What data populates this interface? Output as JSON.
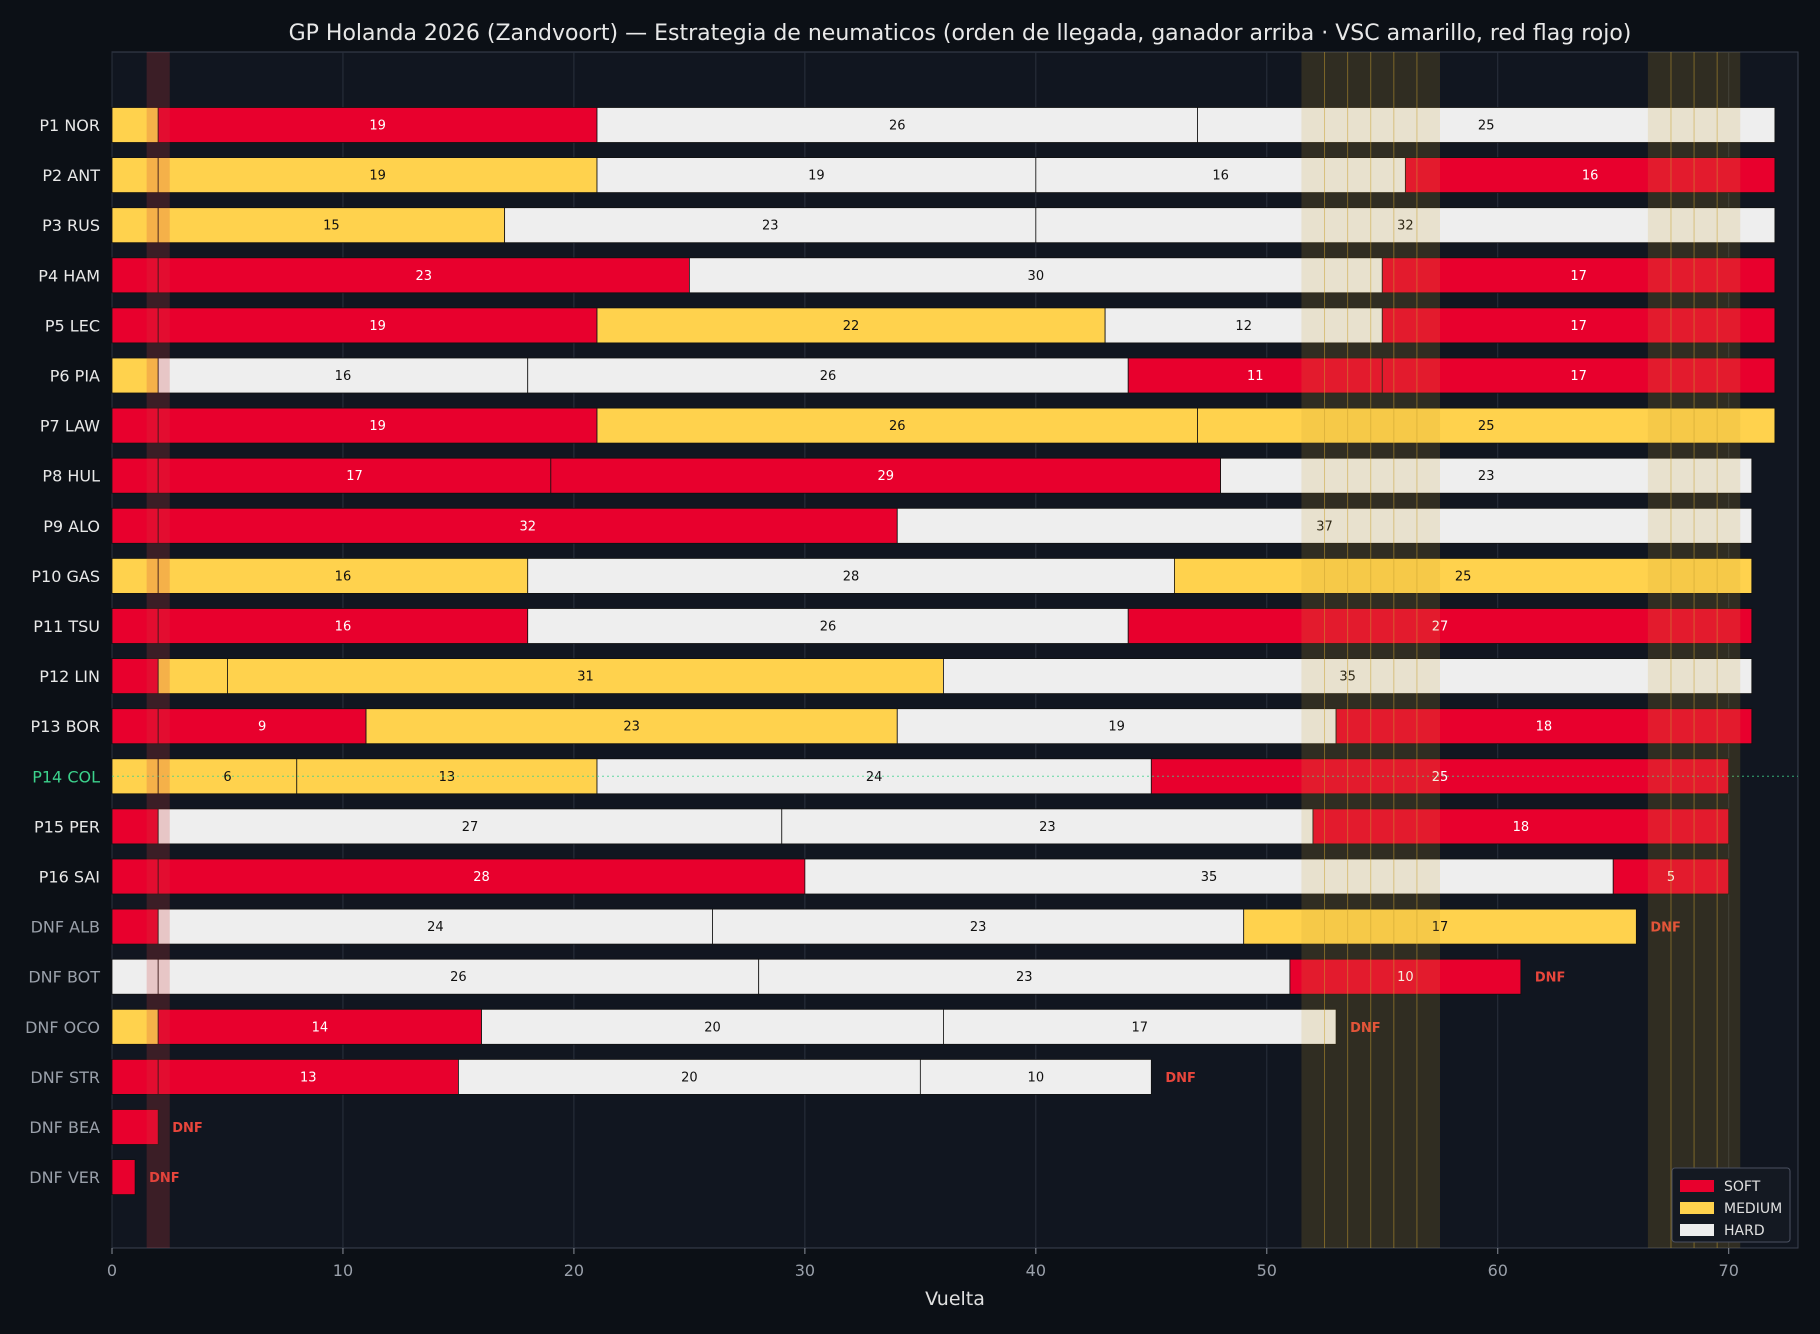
{
  "colors": {
    "background": "#0c1016",
    "plot_background": "#111620",
    "grid": "#2a313d",
    "soft": "#e8002d",
    "medium": "#ffd24d",
    "hard": "#eeeeee",
    "vsc": "#c8a030",
    "red_flag": "#d23c3c",
    "dnf_text": "#e8463c",
    "highlight": "#3cd28c",
    "finisher_label": "#e8e8e8",
    "dnf_label": "#9aa0aa"
  },
  "chart_data": {
    "type": "bar",
    "orientation": "horizontal-stacked",
    "title": "GP Holanda 2026 (Zandvoort) — Estrategia de neumaticos (orden de llegada, ganador arriba · VSC amarillo, red flag rojo)",
    "xlabel": "Vuelta",
    "ylabel": "",
    "xlim": [
      0,
      73
    ],
    "xticks": [
      0,
      10,
      20,
      30,
      40,
      50,
      60,
      70
    ],
    "grid": true,
    "legend": {
      "placement": "bottom-right",
      "entries": [
        {
          "label": "SOFT",
          "compound": "SOFT"
        },
        {
          "label": "MEDIUM",
          "compound": "MEDIUM"
        },
        {
          "label": "HARD",
          "compound": "HARD"
        }
      ]
    },
    "vsc_periods": [
      [
        51.5,
        57.5
      ],
      [
        66.5,
        70.5
      ]
    ],
    "vsc_lap_marks": [
      52.5,
      53.5,
      54.5,
      55.5,
      56.5,
      67.5,
      68.5,
      69.5
    ],
    "red_flag_periods": [
      [
        1.5,
        2.5
      ]
    ],
    "highlight_driver": "P14 COL",
    "drivers": [
      {
        "label": "P1 NOR",
        "dnf": false,
        "stints": [
          {
            "c": "MEDIUM",
            "laps": 2,
            "text": ""
          },
          {
            "c": "SOFT",
            "laps": 19,
            "text": "19"
          },
          {
            "c": "HARD",
            "laps": 26,
            "text": "26"
          },
          {
            "c": "HARD",
            "laps": 25,
            "text": "25"
          }
        ]
      },
      {
        "label": "P2 ANT",
        "dnf": false,
        "stints": [
          {
            "c": "MEDIUM",
            "laps": 2,
            "text": ""
          },
          {
            "c": "MEDIUM",
            "laps": 19,
            "text": "19"
          },
          {
            "c": "HARD",
            "laps": 19,
            "text": "19"
          },
          {
            "c": "HARD",
            "laps": 16,
            "text": "16"
          },
          {
            "c": "SOFT",
            "laps": 16,
            "text": "16"
          }
        ]
      },
      {
        "label": "P3 RUS",
        "dnf": false,
        "stints": [
          {
            "c": "MEDIUM",
            "laps": 2,
            "text": ""
          },
          {
            "c": "MEDIUM",
            "laps": 15,
            "text": "15"
          },
          {
            "c": "HARD",
            "laps": 23,
            "text": "23"
          },
          {
            "c": "HARD",
            "laps": 32,
            "text": "32"
          }
        ]
      },
      {
        "label": "P4 HAM",
        "dnf": false,
        "stints": [
          {
            "c": "SOFT",
            "laps": 2,
            "text": ""
          },
          {
            "c": "SOFT",
            "laps": 23,
            "text": "23"
          },
          {
            "c": "HARD",
            "laps": 30,
            "text": "30"
          },
          {
            "c": "SOFT",
            "laps": 17,
            "text": "17"
          }
        ]
      },
      {
        "label": "P5 LEC",
        "dnf": false,
        "stints": [
          {
            "c": "SOFT",
            "laps": 2,
            "text": ""
          },
          {
            "c": "SOFT",
            "laps": 19,
            "text": "19"
          },
          {
            "c": "MEDIUM",
            "laps": 22,
            "text": "22"
          },
          {
            "c": "HARD",
            "laps": 12,
            "text": "12"
          },
          {
            "c": "SOFT",
            "laps": 17,
            "text": "17"
          }
        ]
      },
      {
        "label": "P6 PIA",
        "dnf": false,
        "stints": [
          {
            "c": "MEDIUM",
            "laps": 2,
            "text": ""
          },
          {
            "c": "HARD",
            "laps": 16,
            "text": "16"
          },
          {
            "c": "HARD",
            "laps": 26,
            "text": "26"
          },
          {
            "c": "SOFT",
            "laps": 11,
            "text": "11"
          },
          {
            "c": "SOFT",
            "laps": 17,
            "text": "17"
          }
        ]
      },
      {
        "label": "P7 LAW",
        "dnf": false,
        "stints": [
          {
            "c": "SOFT",
            "laps": 2,
            "text": ""
          },
          {
            "c": "SOFT",
            "laps": 19,
            "text": "19"
          },
          {
            "c": "MEDIUM",
            "laps": 26,
            "text": "26"
          },
          {
            "c": "MEDIUM",
            "laps": 25,
            "text": "25"
          }
        ]
      },
      {
        "label": "P8 HUL",
        "dnf": false,
        "stints": [
          {
            "c": "SOFT",
            "laps": 2,
            "text": ""
          },
          {
            "c": "SOFT",
            "laps": 17,
            "text": "17"
          },
          {
            "c": "SOFT",
            "laps": 29,
            "text": "29"
          },
          {
            "c": "HARD",
            "laps": 23,
            "text": "23"
          }
        ]
      },
      {
        "label": "P9 ALO",
        "dnf": false,
        "stints": [
          {
            "c": "SOFT",
            "laps": 2,
            "text": ""
          },
          {
            "c": "SOFT",
            "laps": 32,
            "text": "32"
          },
          {
            "c": "HARD",
            "laps": 37,
            "text": "37"
          }
        ]
      },
      {
        "label": "P10 GAS",
        "dnf": false,
        "stints": [
          {
            "c": "MEDIUM",
            "laps": 2,
            "text": ""
          },
          {
            "c": "MEDIUM",
            "laps": 16,
            "text": "16"
          },
          {
            "c": "HARD",
            "laps": 28,
            "text": "28"
          },
          {
            "c": "MEDIUM",
            "laps": 25,
            "text": "25"
          }
        ]
      },
      {
        "label": "P11 TSU",
        "dnf": false,
        "stints": [
          {
            "c": "SOFT",
            "laps": 2,
            "text": ""
          },
          {
            "c": "SOFT",
            "laps": 16,
            "text": "16"
          },
          {
            "c": "HARD",
            "laps": 26,
            "text": "26"
          },
          {
            "c": "SOFT",
            "laps": 27,
            "text": "27"
          }
        ]
      },
      {
        "label": "P12 LIN",
        "dnf": false,
        "stints": [
          {
            "c": "SOFT",
            "laps": 2,
            "text": ""
          },
          {
            "c": "MEDIUM",
            "laps": 3,
            "text": ""
          },
          {
            "c": "MEDIUM",
            "laps": 31,
            "text": "31"
          },
          {
            "c": "HARD",
            "laps": 35,
            "text": "35"
          }
        ]
      },
      {
        "label": "P13 BOR",
        "dnf": false,
        "stints": [
          {
            "c": "SOFT",
            "laps": 2,
            "text": ""
          },
          {
            "c": "SOFT",
            "laps": 9,
            "text": "9"
          },
          {
            "c": "MEDIUM",
            "laps": 23,
            "text": "23"
          },
          {
            "c": "HARD",
            "laps": 19,
            "text": "19"
          },
          {
            "c": "SOFT",
            "laps": 18,
            "text": "18"
          }
        ]
      },
      {
        "label": "P14 COL",
        "dnf": false,
        "stints": [
          {
            "c": "MEDIUM",
            "laps": 2,
            "text": ""
          },
          {
            "c": "MEDIUM",
            "laps": 6,
            "text": "6"
          },
          {
            "c": "MEDIUM",
            "laps": 13,
            "text": "13"
          },
          {
            "c": "HARD",
            "laps": 24,
            "text": "24"
          },
          {
            "c": "SOFT",
            "laps": 25,
            "text": "25"
          }
        ]
      },
      {
        "label": "P15 PER",
        "dnf": false,
        "stints": [
          {
            "c": "SOFT",
            "laps": 2,
            "text": ""
          },
          {
            "c": "HARD",
            "laps": 27,
            "text": "27"
          },
          {
            "c": "HARD",
            "laps": 23,
            "text": "23"
          },
          {
            "c": "SOFT",
            "laps": 18,
            "text": "18"
          }
        ]
      },
      {
        "label": "P16 SAI",
        "dnf": false,
        "stints": [
          {
            "c": "SOFT",
            "laps": 2,
            "text": ""
          },
          {
            "c": "SOFT",
            "laps": 28,
            "text": "28"
          },
          {
            "c": "HARD",
            "laps": 35,
            "text": "35"
          },
          {
            "c": "SOFT",
            "laps": 5,
            "text": "5"
          }
        ]
      },
      {
        "label": "DNF ALB",
        "dnf": true,
        "dnf_text": "DNF",
        "stints": [
          {
            "c": "SOFT",
            "laps": 2,
            "text": ""
          },
          {
            "c": "HARD",
            "laps": 24,
            "text": "24"
          },
          {
            "c": "HARD",
            "laps": 23,
            "text": "23"
          },
          {
            "c": "MEDIUM",
            "laps": 17,
            "text": "17"
          }
        ]
      },
      {
        "label": "DNF BOT",
        "dnf": true,
        "dnf_text": "DNF",
        "stints": [
          {
            "c": "HARD",
            "laps": 2,
            "text": ""
          },
          {
            "c": "HARD",
            "laps": 26,
            "text": "26"
          },
          {
            "c": "HARD",
            "laps": 23,
            "text": "23"
          },
          {
            "c": "SOFT",
            "laps": 10,
            "text": "10"
          }
        ]
      },
      {
        "label": "DNF OCO",
        "dnf": true,
        "dnf_text": "DNF",
        "stints": [
          {
            "c": "MEDIUM",
            "laps": 2,
            "text": ""
          },
          {
            "c": "SOFT",
            "laps": 14,
            "text": "14"
          },
          {
            "c": "HARD",
            "laps": 20,
            "text": "20"
          },
          {
            "c": "HARD",
            "laps": 17,
            "text": "17"
          }
        ]
      },
      {
        "label": "DNF STR",
        "dnf": true,
        "dnf_text": "DNF",
        "stints": [
          {
            "c": "SOFT",
            "laps": 2,
            "text": ""
          },
          {
            "c": "SOFT",
            "laps": 13,
            "text": "13"
          },
          {
            "c": "HARD",
            "laps": 20,
            "text": "20"
          },
          {
            "c": "HARD",
            "laps": 10,
            "text": "10"
          }
        ]
      },
      {
        "label": "DNF BEA",
        "dnf": true,
        "dnf_text": "DNF",
        "stints": [
          {
            "c": "SOFT",
            "laps": 2,
            "text": ""
          }
        ]
      },
      {
        "label": "DNF VER",
        "dnf": true,
        "dnf_text": "DNF",
        "stints": [
          {
            "c": "SOFT",
            "laps": 1,
            "text": ""
          }
        ]
      }
    ]
  }
}
